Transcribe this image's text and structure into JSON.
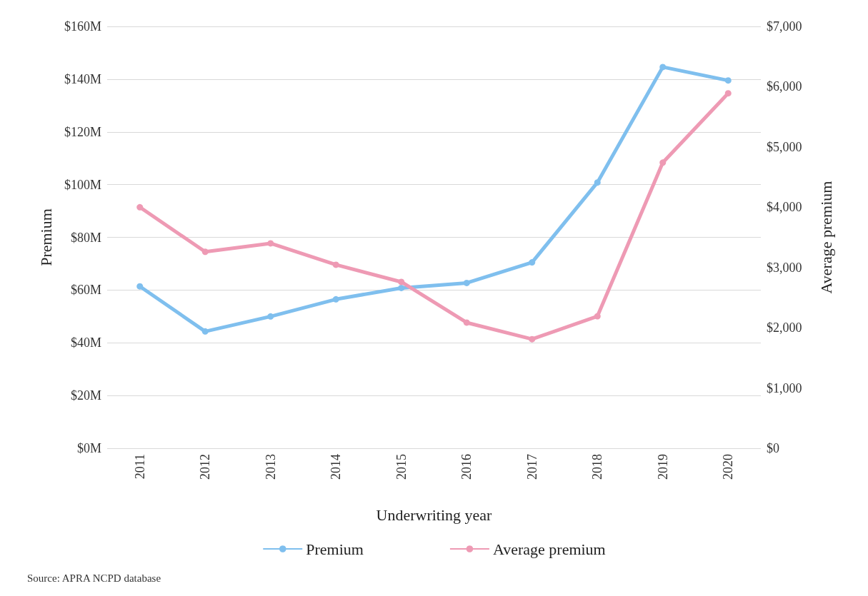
{
  "chart_data": {
    "type": "line",
    "xlabel": "Underwriting year",
    "ylabel": "Premium",
    "y2label": "Average premium",
    "categories": [
      "2011",
      "2012",
      "2013",
      "2014",
      "2015",
      "2016",
      "2017",
      "2018",
      "2019",
      "2020"
    ],
    "series": [
      {
        "name": "Premium",
        "color": "#7fbfee",
        "values": [
          61.4,
          44.3,
          50,
          56.5,
          60.8,
          62.7,
          70.5,
          100.8,
          144.6,
          139.5
        ]
      },
      {
        "name": "Average premium",
        "color": "#ee9ab4",
        "axis": "y2",
        "values": [
          4000,
          3260,
          3400,
          3045,
          2760,
          2085,
          1810,
          2190,
          4740,
          5890
        ]
      }
    ],
    "ylim": [
      0,
      160
    ],
    "yticks": [
      {
        "value": 0,
        "label": "$0M"
      },
      {
        "value": 20,
        "label": "$20M"
      },
      {
        "value": 40,
        "label": "$40M"
      },
      {
        "value": 60,
        "label": "$60M"
      },
      {
        "value": 80,
        "label": "$80M"
      },
      {
        "value": 100,
        "label": "$100M"
      },
      {
        "value": 120,
        "label": "$120M"
      },
      {
        "value": 140,
        "label": "$140M"
      },
      {
        "value": 160,
        "label": "$160M"
      }
    ],
    "y2lim": [
      0,
      7000
    ],
    "y2ticks": [
      {
        "value": 0,
        "label": "$0"
      },
      {
        "value": 1000,
        "label": "$1,000"
      },
      {
        "value": 2000,
        "label": "$2,000"
      },
      {
        "value": 3000,
        "label": "$3,000"
      },
      {
        "value": 4000,
        "label": "$4,000"
      },
      {
        "value": 5000,
        "label": "$5,000"
      },
      {
        "value": 6000,
        "label": "$6,000"
      },
      {
        "value": 7000,
        "label": "$7,000"
      }
    ],
    "grid": "y",
    "legend": "bottom",
    "marker": "circle",
    "line_style": "solid",
    "annotations": [
      "Source: APRA NCPD database"
    ]
  }
}
